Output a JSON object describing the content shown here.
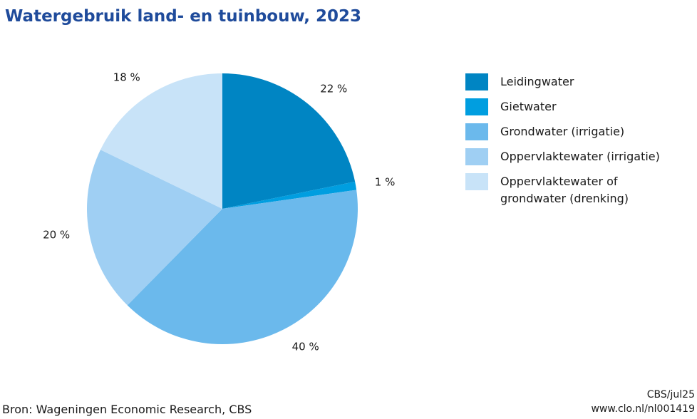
{
  "chart_data": {
    "type": "pie",
    "title": "Watergebruik land- en tuinbouw, 2023",
    "slices": [
      {
        "name": "Leidingwater",
        "value": 22,
        "label": "22 %",
        "color": "#0085c3"
      },
      {
        "name": "Gietwater",
        "value": 1,
        "label": "1 %",
        "color": "#009ee0"
      },
      {
        "name": "Grondwater (irrigatie)",
        "value": 40,
        "label": "40 %",
        "color": "#6bb9ec"
      },
      {
        "name": "Oppervlaktewater (irrigatie)",
        "value": 20,
        "label": "20 %",
        "color": "#9fcff3"
      },
      {
        "name": "Oppervlaktewater of grondwater (drenking)",
        "value": 18,
        "label": "18 %",
        "color": "#c8e3f8"
      }
    ],
    "legend_position": "right"
  },
  "legend": [
    {
      "label": "Leidingwater"
    },
    {
      "label": "Gietwater"
    },
    {
      "label": "Grondwater (irrigatie)"
    },
    {
      "label": "Oppervlaktewater (irrigatie)"
    },
    {
      "label": "Oppervlaktewater of grondwater (drenking)"
    }
  ],
  "source": "Bron: Wageningen Economic Research, CBS",
  "meta": {
    "line1": "CBS/jul25",
    "line2": "www.clo.nl/nl001419"
  }
}
